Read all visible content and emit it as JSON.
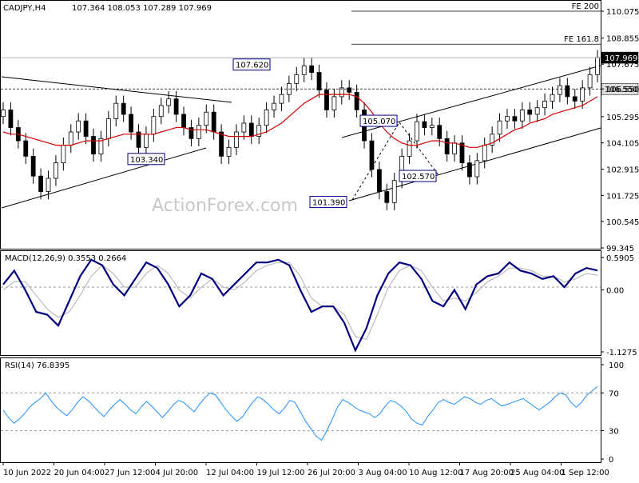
{
  "header": {
    "symbol": "CADJPY,H4",
    "ohlc": "107.364 108.053 107.289 107.969"
  },
  "watermark": "ActionForex.com",
  "colors": {
    "ma": "#d40000",
    "macd": "#000080",
    "signal": "#b0b0b0",
    "rsi": "#1e90ff",
    "candle": "#000000",
    "background": "#ffffff"
  },
  "fib_levels": [
    {
      "label": "FE 200",
      "price": 110.075
    },
    {
      "label": "FE 161.8",
      "price": 108.58
    }
  ],
  "price_tags": [
    {
      "label": "107.969",
      "price": 107.969,
      "style": "dark"
    },
    {
      "label": "106.550",
      "price": 106.55,
      "style": "light"
    }
  ],
  "annotations": [
    {
      "label": "107.620",
      "price": 107.62
    },
    {
      "label": "103.340",
      "price": 103.34
    },
    {
      "label": "105.070",
      "price": 105.07
    },
    {
      "label": "102.570",
      "price": 102.57
    },
    {
      "label": "101.390",
      "price": 101.39
    }
  ],
  "chart_data": {
    "type": "line",
    "title": "CADJPY,H4",
    "price": {
      "ylim": [
        99.345,
        110.075
      ],
      "ticks": [
        "110.075",
        "108.855",
        "107.675",
        "106.550",
        "105.295",
        "104.105",
        "102.915",
        "101.725",
        "100.545",
        "99.345"
      ],
      "close": [
        105.6,
        104.8,
        104.2,
        103.5,
        102.6,
        101.9,
        102.5,
        103.2,
        104.0,
        104.6,
        105.1,
        104.4,
        103.6,
        104.3,
        105.2,
        105.9,
        105.4,
        104.6,
        103.9,
        104.5,
        105.3,
        105.8,
        106.1,
        105.4,
        104.8,
        104.3,
        104.9,
        105.5,
        104.6,
        103.5,
        103.9,
        104.6,
        105.0,
        104.4,
        104.9,
        105.6,
        105.9,
        106.3,
        106.8,
        107.2,
        107.6,
        107.3,
        106.5,
        105.6,
        106.2,
        106.6,
        106.4,
        105.6,
        104.2,
        102.9,
        101.9,
        101.4,
        102.4,
        103.5,
        104.2,
        105.07,
        104.8,
        104.9,
        104.3,
        103.6,
        104.1,
        103.2,
        102.57,
        103.3,
        104.0,
        104.5,
        105.1,
        105.3,
        105.1,
        105.6,
        105.4,
        105.7,
        106.0,
        106.3,
        106.7,
        106.2,
        106.0,
        106.6,
        107.2,
        107.969
      ],
      "ma_close": [
        104.6,
        104.5,
        104.5,
        104.4,
        104.3,
        104.2,
        104.1,
        104.0,
        104.0,
        104.0,
        104.1,
        104.2,
        104.2,
        104.2,
        104.3,
        104.4,
        104.5,
        104.5,
        104.5,
        104.5,
        104.5,
        104.6,
        104.7,
        104.8,
        104.8,
        104.7,
        104.7,
        104.7,
        104.6,
        104.5,
        104.4,
        104.4,
        104.4,
        104.4,
        104.5,
        104.6,
        104.8,
        105.0,
        105.3,
        105.6,
        105.9,
        106.1,
        106.3,
        106.3,
        106.3,
        106.3,
        106.3,
        106.2,
        105.9,
        105.5,
        105.0,
        104.6,
        104.3,
        104.1,
        104.0,
        104.0,
        104.1,
        104.2,
        104.2,
        104.1,
        104.1,
        104.0,
        103.9,
        103.9,
        104.0,
        104.1,
        104.3,
        104.5,
        104.7,
        104.8,
        105.0,
        105.1,
        105.2,
        105.4,
        105.5,
        105.6,
        105.7,
        105.8,
        106.0,
        106.2
      ]
    },
    "macd": {
      "name": "MACD(12,26,9) 0.3553 0.2664",
      "ylim": [
        -1.1275,
        0.5905
      ],
      "ticks": [
        "0.5905",
        "0.00",
        "-1.1275"
      ],
      "macd": [
        0.1,
        0.35,
        0.0,
        -0.4,
        -0.45,
        -0.65,
        -0.2,
        0.25,
        0.55,
        0.45,
        0.1,
        -0.1,
        0.2,
        0.5,
        0.4,
        0.1,
        -0.3,
        -0.1,
        0.3,
        0.2,
        -0.1,
        0.1,
        0.3,
        0.5,
        0.5,
        0.55,
        0.45,
        0.0,
        -0.4,
        -0.3,
        -0.3,
        -0.6,
        -1.1,
        -0.7,
        -0.1,
        0.3,
        0.5,
        0.45,
        0.2,
        -0.2,
        -0.3,
        0.0,
        -0.35,
        0.1,
        0.25,
        0.3,
        0.5,
        0.35,
        0.3,
        0.2,
        0.25,
        0.05,
        0.3,
        0.4,
        0.3553
      ],
      "signal": [
        0.0,
        0.15,
        0.15,
        -0.1,
        -0.35,
        -0.5,
        -0.4,
        -0.1,
        0.25,
        0.45,
        0.3,
        0.05,
        0.05,
        0.3,
        0.45,
        0.3,
        0.0,
        -0.15,
        0.05,
        0.2,
        0.05,
        0.0,
        0.15,
        0.35,
        0.45,
        0.5,
        0.5,
        0.25,
        -0.15,
        -0.3,
        -0.3,
        -0.45,
        -0.85,
        -0.9,
        -0.45,
        0.05,
        0.35,
        0.45,
        0.35,
        0.05,
        -0.2,
        -0.15,
        -0.2,
        -0.05,
        0.15,
        0.25,
        0.4,
        0.4,
        0.35,
        0.25,
        0.25,
        0.15,
        0.2,
        0.3,
        0.2664
      ]
    },
    "rsi": {
      "name": "RSI(14) 76.8395",
      "ylim": [
        0,
        100
      ],
      "ticks": [
        "100",
        "70",
        "30",
        "0"
      ],
      "levels": [
        70,
        30
      ],
      "values": [
        52,
        44,
        38,
        42,
        48,
        55,
        60,
        64,
        70,
        62,
        55,
        50,
        46,
        52,
        60,
        66,
        62,
        56,
        50,
        45,
        52,
        58,
        63,
        58,
        52,
        48,
        55,
        61,
        56,
        50,
        44,
        50,
        57,
        62,
        60,
        55,
        50,
        58,
        65,
        70,
        68,
        60,
        52,
        46,
        40,
        44,
        52,
        60,
        66,
        63,
        58,
        52,
        48,
        54,
        62,
        60,
        50,
        40,
        32,
        24,
        20,
        30,
        42,
        55,
        63,
        60,
        56,
        52,
        50,
        48,
        44,
        48,
        56,
        62,
        60,
        56,
        50,
        42,
        38,
        36,
        45,
        52,
        60,
        63,
        60,
        58,
        62,
        66,
        64,
        60,
        58,
        62,
        64,
        60,
        56,
        58,
        60,
        62,
        64,
        60,
        56,
        52,
        56,
        60,
        66,
        70,
        68,
        60,
        55,
        60,
        68,
        72,
        76.8395
      ]
    },
    "x_labels": [
      "10 Jun 2022",
      "20 Jun 04:00",
      "27 Jun 12:00",
      "4 Jul 20:00",
      "12 Jul 04:00",
      "19 Jul 12:00",
      "26 Jul 20:00",
      "3 Aug 04:00",
      "10 Aug 12:00",
      "17 Aug 20:00",
      "25 Aug 04:00",
      "1 Sep 12:00"
    ],
    "legend": "none",
    "grid": false
  }
}
